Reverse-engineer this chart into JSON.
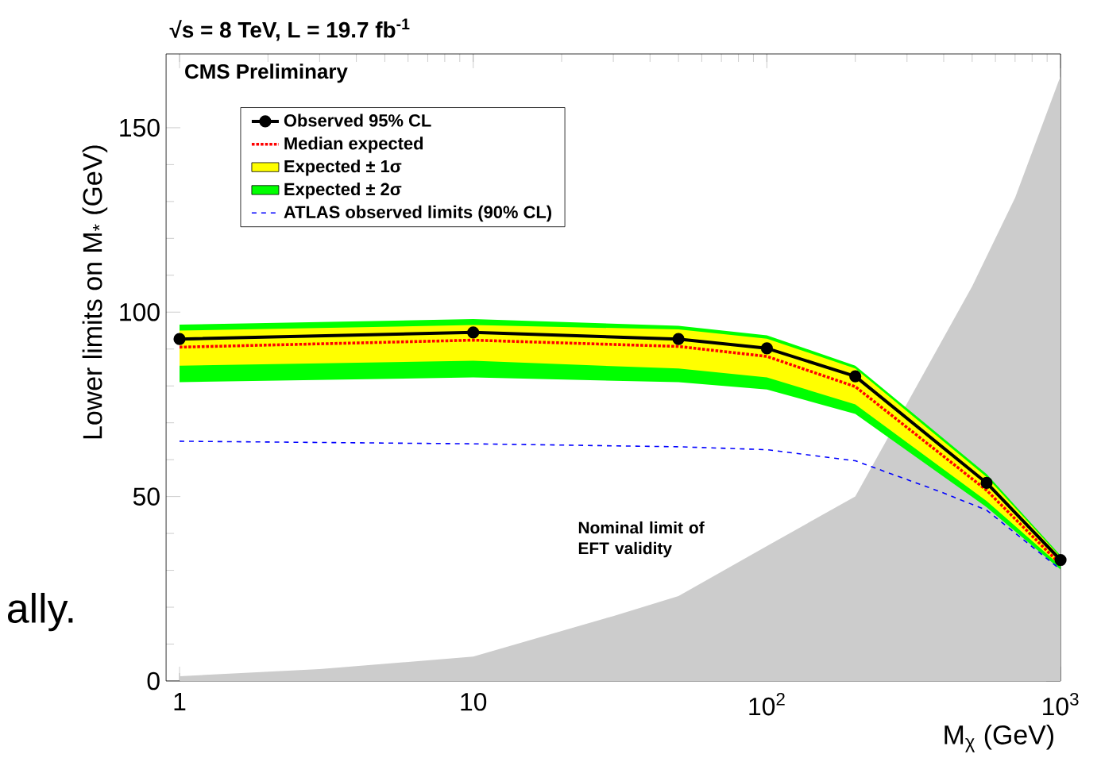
{
  "chart_data": {
    "type": "line",
    "title": "√s = 8 TeV, L = 19.7 fb$^{-1}$",
    "xlabel": "M$_{χ}$ (GeV)",
    "ylabel": "Lower limits on M$_{*}$ (GeV)",
    "log": "x",
    "xlim": [
      0.9,
      1000
    ],
    "ylim": [
      0,
      170
    ],
    "xticks": [
      1,
      10,
      {
        "value": 100,
        "label": "10$^{2}$"
      },
      {
        "value": 1000,
        "label": "10$^{3}$"
      }
    ],
    "yticks": [
      0,
      50,
      100,
      150
    ],
    "legend": "top",
    "grid": false,
    "annotations": [
      "CMS Preliminary",
      "Nominal limit of EFT validity",
      "ally."
    ],
    "series": [
      {
        "name": "Observed 95% CL",
        "color": "#000000",
        "marker": "circle",
        "line_style": "solid",
        "x": [
          1,
          10,
          50,
          100,
          200,
          560,
          1000
        ],
        "values": [
          92.7,
          94.5,
          92.7,
          90.2,
          82.6,
          53.7,
          32.8
        ]
      },
      {
        "name": "Median expected",
        "color": "#ff0000",
        "marker": "none",
        "line_style": "dotted",
        "x": [
          1,
          10,
          50,
          100,
          200,
          560,
          1000
        ],
        "values": [
          90.5,
          92.4,
          90.7,
          88,
          79.8,
          51.7,
          31.6
        ]
      },
      {
        "name": "Expected ± 1σ",
        "color": "#ffff00",
        "x": [
          1,
          10,
          50,
          100,
          200,
          560,
          1000
        ],
        "values": [
          null,
          null,
          null,
          null,
          null,
          null,
          null
        ],
        "lower": [
          85.5,
          86.8,
          84.7,
          82.3,
          75,
          48.8,
          31.2
        ],
        "upper": [
          95,
          96.5,
          95.3,
          92.8,
          84.7,
          55.3,
          33.6
        ]
      },
      {
        "name": "Expected ± 2σ",
        "color": "#00ff00",
        "x": [
          1,
          10,
          50,
          100,
          200,
          560,
          1000
        ],
        "values": [
          null,
          null,
          null,
          null,
          null,
          null,
          null
        ],
        "lower": [
          81,
          82.3,
          81,
          79,
          72.4,
          47.1,
          30.2
        ],
        "upper": [
          96.6,
          98.1,
          96.3,
          93.7,
          85.5,
          56.1,
          34
        ]
      },
      {
        "name": "ATLAS observed limits (90% CL)",
        "color": "#0000ff",
        "marker": "none",
        "line_style": "dashed",
        "x": [
          1,
          10,
          50,
          100,
          200,
          390,
          560,
          1000
        ],
        "values": [
          65,
          64.3,
          63.5,
          62.7,
          59.7,
          51.3,
          46.3,
          30.2
        ]
      },
      {
        "type": "area",
        "color": "#cccccc",
        "x": [
          1,
          3,
          10,
          30,
          50,
          100,
          200,
          500,
          700,
          1000
        ],
        "values": [
          1.3,
          3.2,
          6.6,
          17.6,
          23,
          36.6,
          50,
          107,
          131,
          164
        ]
      }
    ]
  }
}
